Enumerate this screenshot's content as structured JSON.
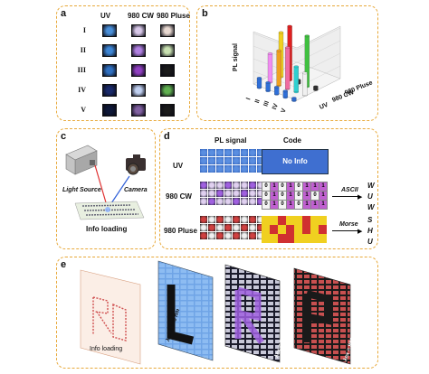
{
  "panel_a": {
    "label": "a",
    "columns": [
      "UV",
      "980 CW",
      "980 Pluse"
    ],
    "rows": [
      "I",
      "II",
      "III",
      "IV",
      "V"
    ],
    "cells": [
      [
        "#4a8fd8",
        "#d8c8e8",
        "#e8d8d0"
      ],
      [
        "#3e86d4",
        "#b080e0",
        "#c8e0b0"
      ],
      [
        "#3070c0",
        "#9040c0",
        "#1a1a1a"
      ],
      [
        "#1a2a6a",
        "#c0d0f0",
        "#60b050"
      ],
      [
        "#0e1838",
        "#8060a0",
        "#1a1a1a"
      ]
    ]
  },
  "panel_b": {
    "label": "b",
    "ylabel": "PL signal",
    "x_labels": [
      "I",
      "II",
      "III",
      "IV",
      "V"
    ],
    "depth_labels": [
      "UV",
      "980 CW",
      "980 Pluse"
    ]
  },
  "panel_c": {
    "label": "c",
    "light_source": "Light Source",
    "camera": "Camera",
    "caption": "Info loading"
  },
  "panel_d": {
    "label": "d",
    "col_pl": "PL signal",
    "col_code": "Code",
    "rows": [
      "UV",
      "980 CW",
      "980 Pluse"
    ],
    "no_info": "No Info",
    "ascii": "ASCII",
    "morse": "Morse",
    "ascii_letters": [
      "W",
      "U",
      "W"
    ],
    "morse_letters": [
      "S",
      "H",
      "U"
    ]
  },
  "panel_e": {
    "label": "e",
    "info_loading": "Info loading",
    "ex_365": "λex = 365 nm",
    "ex_980cw": "λex = 980 nm CW",
    "ex_980p": "λex = 980 nm Pluse"
  },
  "chart_data": {
    "type": "bar",
    "title": "",
    "ylabel": "PL signal",
    "categories": [
      "I",
      "II",
      "III",
      "IV",
      "V"
    ],
    "series": [
      {
        "name": "UV",
        "values": [
          0.15,
          0.13,
          0.11,
          0.1,
          0.04
        ]
      },
      {
        "name": "980 CW",
        "values": [
          0.45,
          0.55,
          0.65,
          0.4,
          0.35
        ]
      },
      {
        "name": "980 Pluse",
        "values": [
          0.7,
          0.85,
          0.05,
          0.8,
          0.05
        ]
      }
    ]
  }
}
